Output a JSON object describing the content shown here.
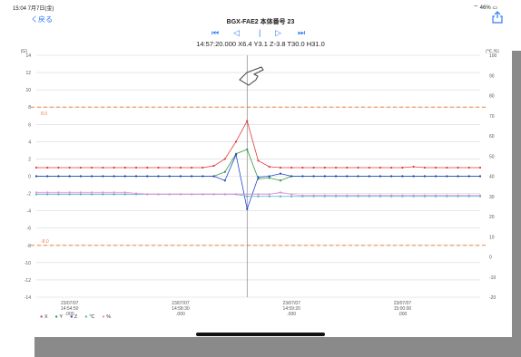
{
  "status_bar": {
    "time_date": "15:04  7月7日(金)",
    "battery": "46%"
  },
  "nav": {
    "back_label": "く戻る",
    "title": "BGX-FAE2 本体番号 23"
  },
  "playback": {
    "first": "⏮",
    "prev": "◁",
    "pause": "|",
    "next": "▷",
    "last": "⏭"
  },
  "readout": "14:57:20.000 X6.4 Y3.1 Z-3.8 T30.0 H31.0",
  "chart_data": {
    "type": "line",
    "left_axis": {
      "unit": "(G)",
      "ylim": [
        -14,
        14
      ],
      "ticks": [
        "14",
        "12",
        "10",
        "8",
        "6",
        "4",
        "2",
        "0",
        "-2",
        "-4",
        "-6",
        "-8",
        "-10",
        "-12",
        "-14"
      ]
    },
    "right_axis": {
      "unit": "(℃,%)",
      "ylim": [
        -20,
        100
      ],
      "ticks": [
        "100",
        "90",
        "80",
        "70",
        "60",
        "50",
        "40",
        "30",
        "20",
        "10",
        "0",
        "-10",
        "-20"
      ]
    },
    "thresholds": [
      {
        "value": 8.0,
        "label": "8.0",
        "color": "#f0803c"
      },
      {
        "value": -8.0,
        "label": "-8.0",
        "color": "#f0803c"
      }
    ],
    "cursor_index": 19,
    "x_ticks": [
      {
        "index": 3,
        "label": "23/07/07\n14:54:50\n.000"
      },
      {
        "index": 13,
        "label": "23/07/07\n14:58:30\n.000"
      },
      {
        "index": 23,
        "label": "23/07/07\n14:59:20\n.000"
      },
      {
        "index": 33,
        "label": "23/07/07\n15:00:00\n.000"
      }
    ],
    "n_points": 41,
    "series": [
      {
        "name": "X",
        "color": "#e23b3b",
        "axis": "left",
        "values": [
          1,
          1,
          1,
          1,
          1,
          1,
          1,
          1,
          1,
          1,
          1,
          1,
          1,
          1,
          1,
          1,
          1.2,
          2,
          4,
          6.4,
          1.8,
          1.1,
          1,
          1,
          1,
          1,
          1,
          1,
          1,
          1,
          1,
          1,
          1,
          1,
          1.1,
          1,
          1,
          1,
          1,
          1,
          1
        ]
      },
      {
        "name": "Y",
        "color": "#2e9a3a",
        "axis": "left",
        "values": [
          0,
          0,
          0,
          0,
          0,
          0,
          0,
          0,
          0,
          0,
          0,
          0,
          0,
          0,
          0,
          0,
          0,
          0.5,
          2.6,
          3.1,
          -0.3,
          -0.2,
          -0.5,
          0,
          0,
          0,
          0,
          0,
          0,
          0,
          0,
          0,
          0,
          0,
          0,
          0,
          0,
          0,
          0,
          0,
          0
        ]
      },
      {
        "name": "Z",
        "color": "#2446c8",
        "axis": "left",
        "values": [
          0,
          0,
          0,
          0,
          0,
          0,
          0,
          0,
          0,
          0,
          0,
          0,
          0,
          0,
          0,
          0,
          0,
          -0.5,
          2.5,
          -3.8,
          -0.1,
          0,
          0.3,
          0,
          0,
          0,
          0,
          0,
          0,
          0,
          0,
          0,
          0,
          0,
          0,
          0,
          0,
          0,
          0,
          0,
          0
        ]
      },
      {
        "name": "℃",
        "color": "#4bb6c6",
        "axis": "right",
        "values": [
          31,
          31,
          31,
          31,
          31,
          31,
          31,
          31,
          31,
          31,
          31,
          31,
          31,
          31,
          31,
          31,
          31,
          31,
          31,
          30,
          30,
          30,
          30,
          30,
          30,
          30,
          30,
          30,
          30,
          30,
          30,
          30,
          30,
          30,
          30,
          30,
          30,
          30,
          30,
          30,
          30
        ]
      },
      {
        "name": "%",
        "color": "#e48fe0",
        "axis": "right",
        "values": [
          32,
          32,
          32,
          32,
          32,
          32,
          32,
          32,
          32,
          31.5,
          31,
          31,
          31,
          31,
          31,
          31,
          31,
          31,
          31,
          31,
          31,
          31,
          32,
          31,
          30.5,
          30.5,
          30.5,
          30.5,
          30.5,
          30.5,
          30.5,
          30.5,
          30.5,
          30.5,
          30.5,
          30.5,
          30.5,
          30.5,
          30.5,
          30.5,
          30.5
        ]
      }
    ],
    "grid": true
  },
  "legend": [
    {
      "label": "X",
      "color": "#e23b3b"
    },
    {
      "label": "Y",
      "color": "#2e9a3a"
    },
    {
      "label": "Z",
      "color": "#2446c8"
    },
    {
      "label": "℃",
      "color": "#4bb6c6"
    },
    {
      "label": "%",
      "color": "#e48fe0"
    }
  ]
}
